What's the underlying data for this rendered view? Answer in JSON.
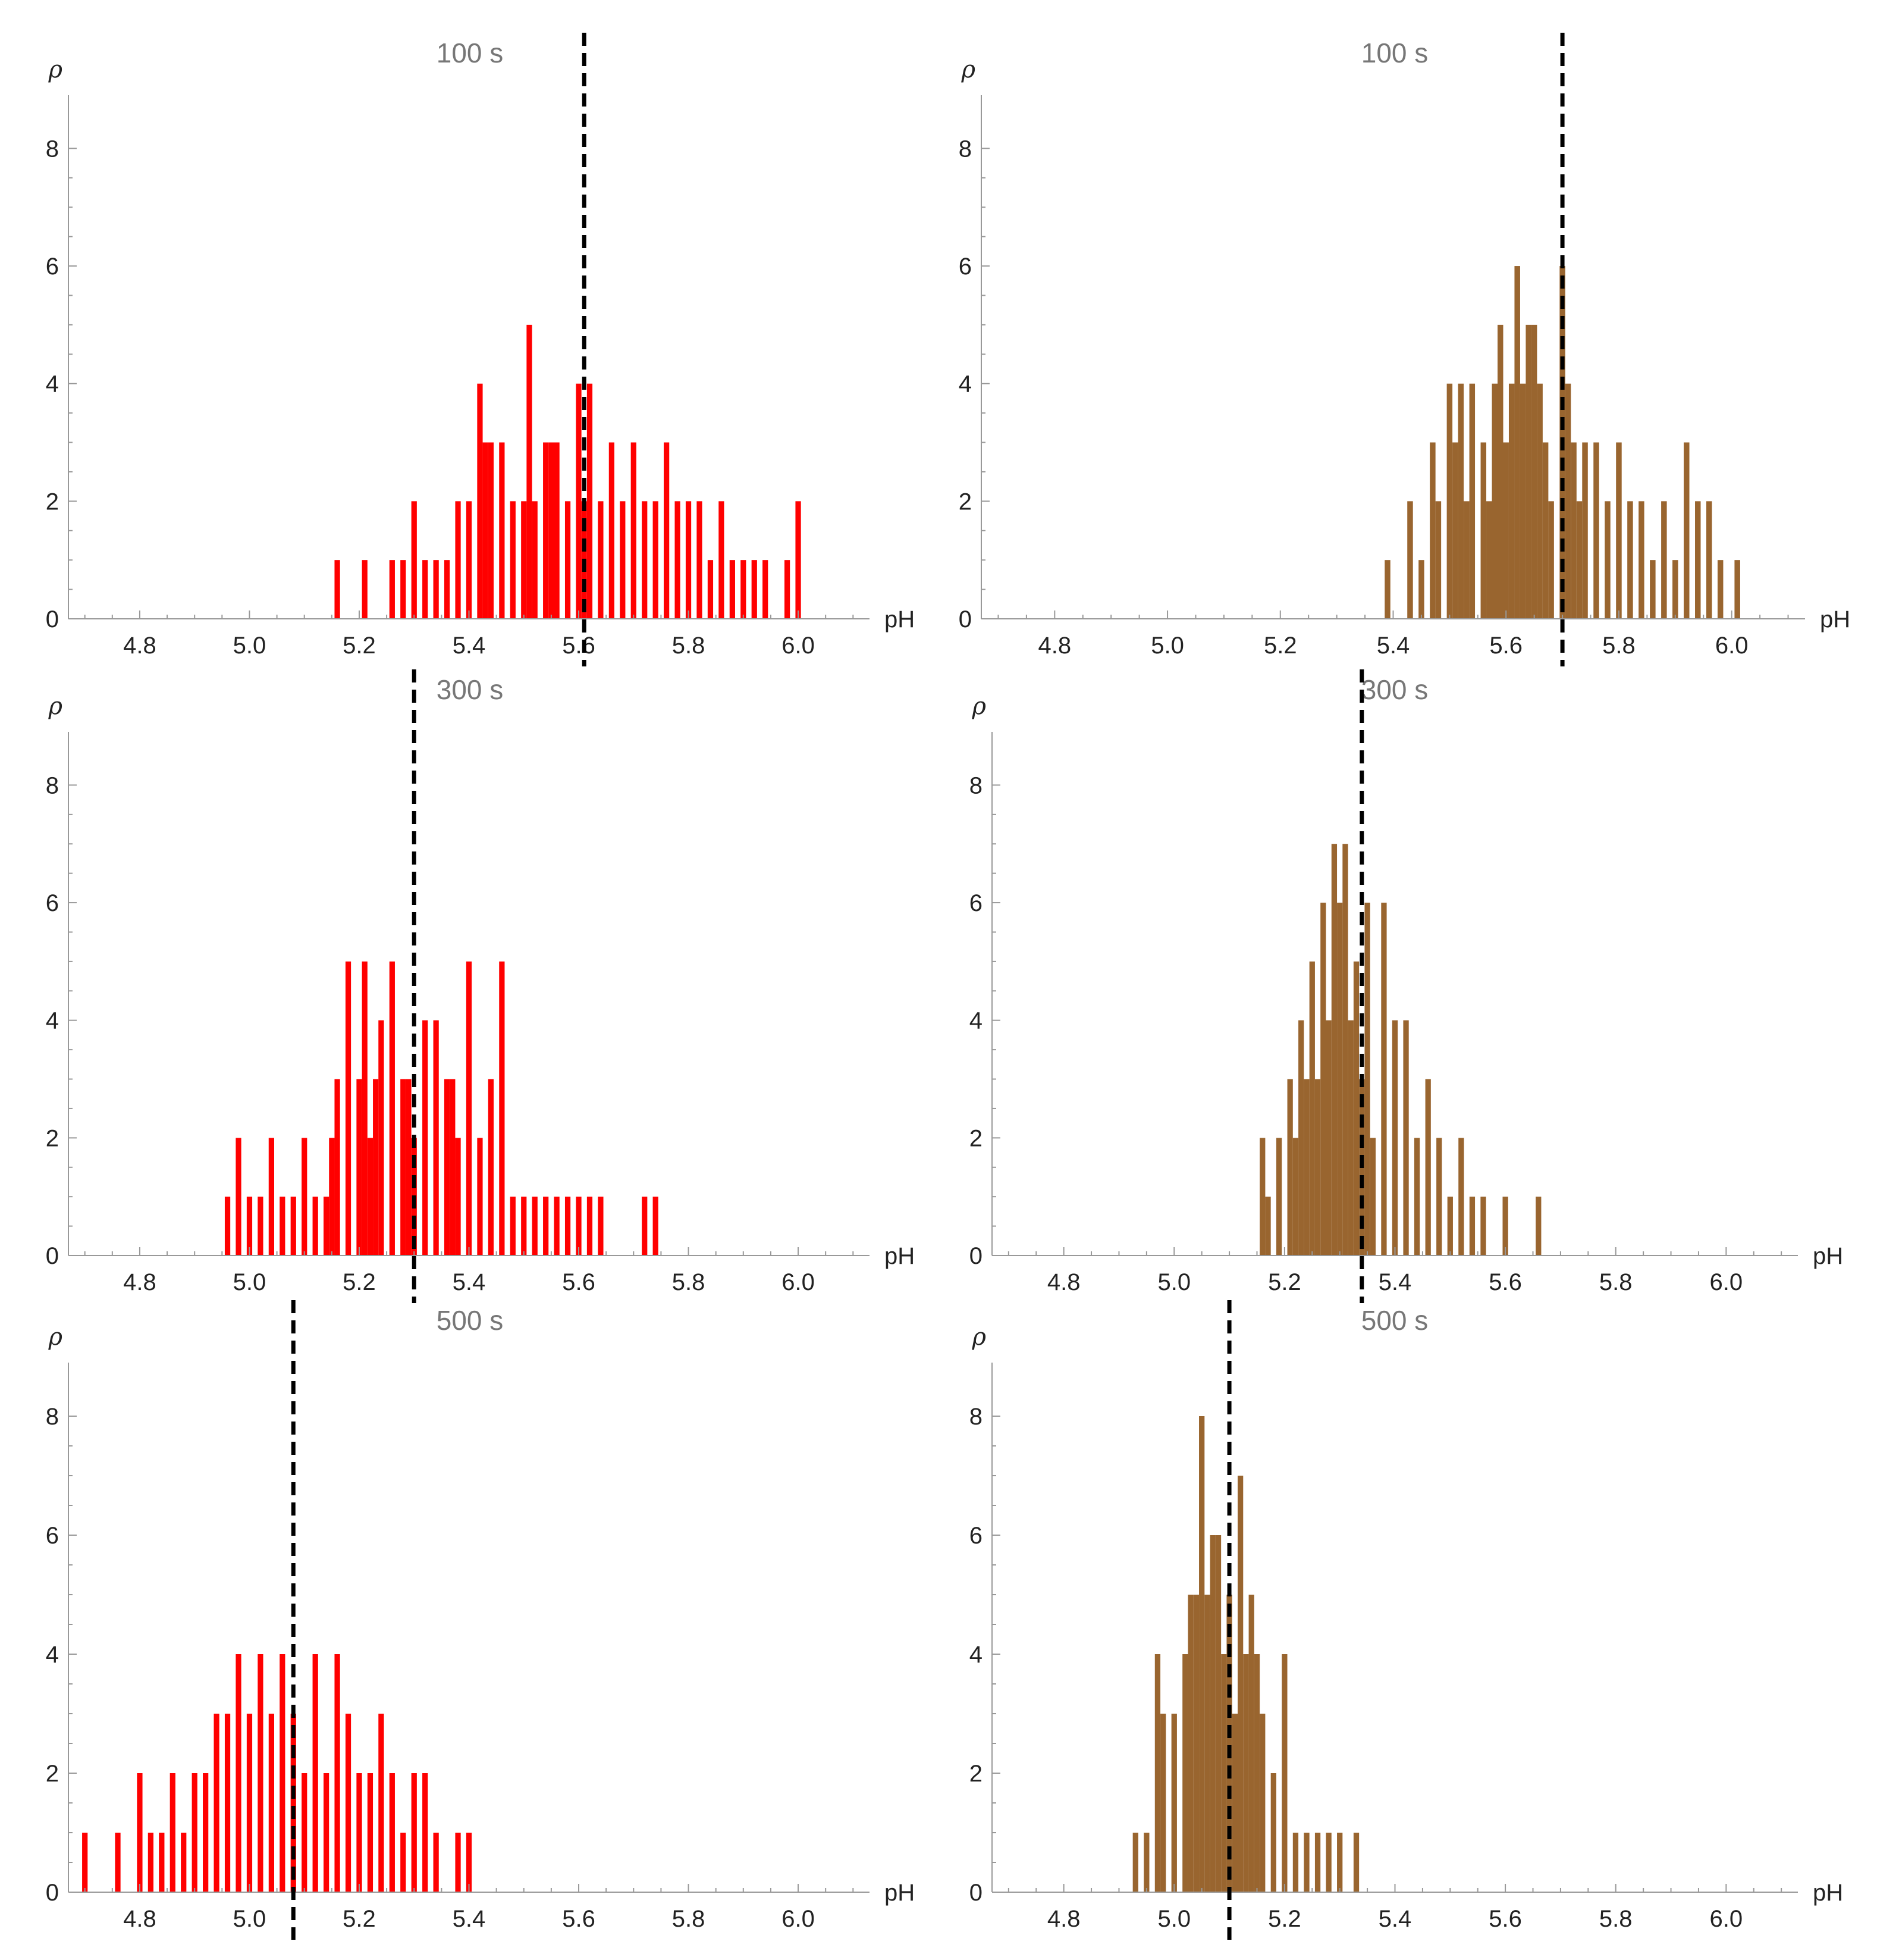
{
  "figure": {
    "colors": {
      "red_series": "#ff0000",
      "brown_series": "#99652f",
      "reference_line": "#000000",
      "axis": "#999999",
      "title_text": "#777777"
    }
  },
  "chart_data": [
    {
      "type": "bar",
      "title": "100 s",
      "xlabel": "pH",
      "ylabel": "ρ",
      "color": "red",
      "xlim": [
        4.67,
        6.13
      ],
      "ylim": [
        0,
        8.5
      ],
      "xticks": [
        "4.8",
        "5.0",
        "5.2",
        "5.4",
        "5.6",
        "5.8",
        "6.0"
      ],
      "yticks": [
        "0",
        "2",
        "4",
        "6",
        "8"
      ],
      "reference_line_x": 5.61,
      "x": [
        5.16,
        5.21,
        5.26,
        5.28,
        5.3,
        5.32,
        5.34,
        5.36,
        5.38,
        5.4,
        5.42,
        5.43,
        5.44,
        5.46,
        5.48,
        5.5,
        5.51,
        5.52,
        5.54,
        5.55,
        5.56,
        5.58,
        5.6,
        5.61,
        5.62,
        5.64,
        5.66,
        5.68,
        5.7,
        5.72,
        5.74,
        5.76,
        5.78,
        5.8,
        5.82,
        5.84,
        5.86,
        5.88,
        5.9,
        5.92,
        5.94,
        5.98,
        6.0
      ],
      "values": [
        1,
        1,
        1,
        1,
        2,
        1,
        1,
        1,
        2,
        2,
        4,
        3,
        3,
        3,
        2,
        2,
        5,
        2,
        3,
        3,
        3,
        2,
        4,
        2,
        4,
        2,
        3,
        2,
        3,
        2,
        2,
        3,
        2,
        2,
        2,
        1,
        2,
        1,
        1,
        1,
        1,
        1,
        2
      ]
    },
    {
      "type": "bar",
      "title": "100 s",
      "xlabel": "pH",
      "ylabel": "ρ",
      "color": "brown",
      "xlim": [
        4.67,
        6.13
      ],
      "ylim": [
        0,
        8.5
      ],
      "xticks": [
        "4.8",
        "5.0",
        "5.2",
        "5.4",
        "5.6",
        "5.8",
        "6.0"
      ],
      "yticks": [
        "0",
        "2",
        "4",
        "6",
        "8"
      ],
      "reference_line_x": 5.7,
      "x": [
        5.39,
        5.43,
        5.45,
        5.47,
        5.48,
        5.5,
        5.51,
        5.52,
        5.53,
        5.54,
        5.56,
        5.57,
        5.58,
        5.59,
        5.6,
        5.61,
        5.62,
        5.63,
        5.64,
        5.65,
        5.66,
        5.67,
        5.68,
        5.7,
        5.71,
        5.72,
        5.73,
        5.74,
        5.76,
        5.78,
        5.8,
        5.82,
        5.84,
        5.86,
        5.88,
        5.9,
        5.92,
        5.94,
        5.96,
        5.98,
        6.01
      ],
      "values": [
        1,
        2,
        1,
        3,
        2,
        4,
        3,
        4,
        2,
        4,
        3,
        2,
        4,
        5,
        3,
        4,
        6,
        4,
        5,
        5,
        4,
        3,
        2,
        6,
        4,
        3,
        2,
        3,
        3,
        2,
        3,
        2,
        2,
        1,
        2,
        1,
        3,
        2,
        2,
        1,
        1
      ]
    },
    {
      "type": "bar",
      "title": "300 s",
      "xlabel": "pH",
      "ylabel": "ρ",
      "color": "red",
      "xlim": [
        4.67,
        6.13
      ],
      "ylim": [
        0,
        8.5
      ],
      "xticks": [
        "4.8",
        "5.0",
        "5.2",
        "5.4",
        "5.6",
        "5.8",
        "6.0"
      ],
      "yticks": [
        "0",
        "2",
        "4",
        "6",
        "8"
      ],
      "reference_line_x": 5.3,
      "x": [
        4.96,
        4.98,
        5.0,
        5.02,
        5.04,
        5.06,
        5.08,
        5.1,
        5.12,
        5.14,
        5.15,
        5.16,
        5.18,
        5.2,
        5.21,
        5.22,
        5.23,
        5.24,
        5.26,
        5.28,
        5.29,
        5.3,
        5.32,
        5.34,
        5.36,
        5.37,
        5.38,
        5.4,
        5.42,
        5.44,
        5.46,
        5.48,
        5.5,
        5.52,
        5.54,
        5.56,
        5.58,
        5.6,
        5.62,
        5.64,
        5.72,
        5.74
      ],
      "values": [
        1,
        2,
        1,
        1,
        2,
        1,
        1,
        2,
        1,
        1,
        2,
        3,
        5,
        3,
        5,
        2,
        3,
        4,
        5,
        3,
        3,
        2,
        4,
        4,
        3,
        3,
        2,
        5,
        2,
        3,
        5,
        1,
        1,
        1,
        1,
        1,
        1,
        1,
        1,
        1,
        1,
        1
      ]
    },
    {
      "type": "bar",
      "title": "300 s",
      "xlabel": "pH",
      "ylabel": "ρ",
      "color": "brown",
      "xlim": [
        4.67,
        6.13
      ],
      "ylim": [
        0,
        8.5
      ],
      "xticks": [
        "4.8",
        "5.0",
        "5.2",
        "5.4",
        "5.6",
        "5.8",
        "6.0"
      ],
      "yticks": [
        "0",
        "2",
        "4",
        "6",
        "8"
      ],
      "reference_line_x": 5.34,
      "x": [
        5.16,
        5.17,
        5.19,
        5.21,
        5.22,
        5.23,
        5.24,
        5.25,
        5.26,
        5.27,
        5.28,
        5.29,
        5.3,
        5.31,
        5.32,
        5.33,
        5.34,
        5.35,
        5.36,
        5.38,
        5.4,
        5.42,
        5.44,
        5.46,
        5.48,
        5.5,
        5.52,
        5.54,
        5.56,
        5.6,
        5.66
      ],
      "values": [
        2,
        1,
        2,
        3,
        2,
        4,
        3,
        5,
        3,
        6,
        4,
        7,
        6,
        7,
        4,
        5,
        3,
        6,
        2,
        6,
        4,
        4,
        2,
        3,
        2,
        1,
        2,
        1,
        1,
        1,
        1
      ]
    },
    {
      "type": "bar",
      "title": "500 s",
      "xlabel": "pH",
      "ylabel": "ρ",
      "color": "red",
      "xlim": [
        4.67,
        6.13
      ],
      "ylim": [
        0,
        8.5
      ],
      "xticks": [
        "4.8",
        "5.0",
        "5.2",
        "5.4",
        "5.6",
        "5.8",
        "6.0"
      ],
      "yticks": [
        "0",
        "2",
        "4",
        "6",
        "8"
      ],
      "reference_line_x": 5.08,
      "x": [
        4.7,
        4.76,
        4.8,
        4.82,
        4.84,
        4.86,
        4.88,
        4.9,
        4.92,
        4.94,
        4.96,
        4.98,
        5.0,
        5.02,
        5.04,
        5.06,
        5.08,
        5.1,
        5.12,
        5.14,
        5.16,
        5.18,
        5.2,
        5.22,
        5.24,
        5.26,
        5.28,
        5.3,
        5.32,
        5.34,
        5.38,
        5.4
      ],
      "values": [
        1,
        1,
        2,
        1,
        1,
        2,
        1,
        2,
        2,
        3,
        3,
        4,
        3,
        4,
        3,
        4,
        3,
        2,
        4,
        2,
        4,
        3,
        2,
        2,
        3,
        2,
        1,
        2,
        2,
        1,
        1,
        1
      ]
    },
    {
      "type": "bar",
      "title": "500 s",
      "xlabel": "pH",
      "ylabel": "ρ",
      "color": "brown",
      "xlim": [
        4.67,
        6.13
      ],
      "ylim": [
        0,
        8.5
      ],
      "xticks": [
        "4.8",
        "5.0",
        "5.2",
        "5.4",
        "5.6",
        "5.8",
        "6.0"
      ],
      "yticks": [
        "0",
        "2",
        "4",
        "6",
        "8"
      ],
      "reference_line_x": 5.1,
      "x": [
        4.93,
        4.95,
        4.97,
        4.98,
        5.0,
        5.02,
        5.03,
        5.04,
        5.05,
        5.06,
        5.07,
        5.08,
        5.09,
        5.1,
        5.11,
        5.12,
        5.13,
        5.14,
        5.15,
        5.16,
        5.18,
        5.2,
        5.22,
        5.24,
        5.26,
        5.28,
        5.3,
        5.33
      ],
      "values": [
        1,
        1,
        4,
        3,
        3,
        4,
        5,
        5,
        8,
        5,
        6,
        6,
        4,
        5,
        3,
        7,
        4,
        5,
        4,
        3,
        2,
        4,
        1,
        1,
        1,
        1,
        1,
        1
      ]
    }
  ]
}
